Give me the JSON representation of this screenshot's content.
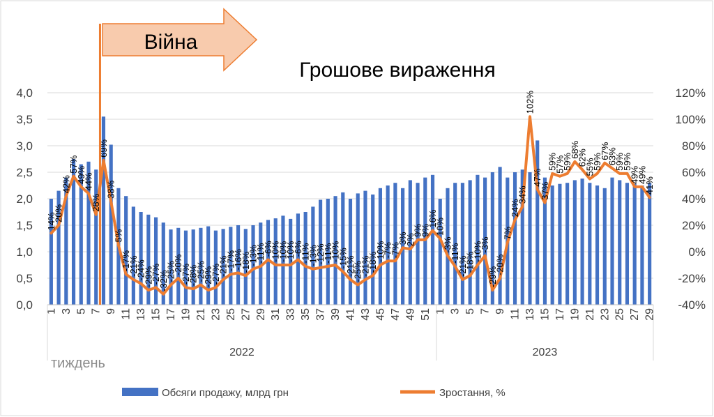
{
  "banner_label": "Війна",
  "chart_data": {
    "type": "bar+line",
    "title": "Грошове вираження",
    "xlabel": "тиждень",
    "ylim_left": [
      0,
      4
    ],
    "ylim_right": [
      -0.4,
      1.2
    ],
    "left_ticks": [
      "0,0",
      "0,5",
      "1,0",
      "1,5",
      "2,0",
      "2,5",
      "3,0",
      "3,5",
      "4,0"
    ],
    "right_ticks": [
      "-40%",
      "-20%",
      "0%",
      "20%",
      "40%",
      "60%",
      "80%",
      "100%",
      "120%"
    ],
    "grid": true,
    "legend_position": "bottom",
    "war_marker_week": "2022-8",
    "years": [
      {
        "label": "2022",
        "weeks": 52
      },
      {
        "label": "2023",
        "weeks": 29
      }
    ],
    "colors": {
      "bars": "#4472C4",
      "line": "#ED7D31",
      "banner_fill": "#F8CBAD",
      "banner_stroke": "#ED7D31"
    },
    "series": [
      {
        "name": "Обсяги продажу, млрд грн",
        "type": "bar",
        "values": [
          2.0,
          2.15,
          2.4,
          2.75,
          2.65,
          2.7,
          2.55,
          3.55,
          3.02,
          2.2,
          2.05,
          1.85,
          1.75,
          1.7,
          1.65,
          1.55,
          1.42,
          1.45,
          1.4,
          1.42,
          1.45,
          1.48,
          1.4,
          1.43,
          1.47,
          1.5,
          1.43,
          1.5,
          1.55,
          1.6,
          1.63,
          1.68,
          1.62,
          1.72,
          1.75,
          1.85,
          1.98,
          2.0,
          2.05,
          2.12,
          2.0,
          2.1,
          2.15,
          2.08,
          2.2,
          2.25,
          2.3,
          2.2,
          2.35,
          2.3,
          2.4,
          2.45,
          2.0,
          2.2,
          2.3,
          2.3,
          2.35,
          2.45,
          2.4,
          2.5,
          2.6,
          2.4,
          2.5,
          2.55,
          2.5,
          3.1,
          2.4,
          2.25,
          2.28,
          2.3,
          2.35,
          2.38,
          2.3,
          2.25,
          2.2,
          2.4,
          2.35,
          2.3,
          2.28,
          2.25,
          2.3
        ]
      },
      {
        "name": "Зростання, %",
        "type": "line",
        "values": [
          0.14,
          0.2,
          0.42,
          0.57,
          0.49,
          0.44,
          0.28,
          0.69,
          0.38,
          0.05,
          -0.17,
          -0.21,
          -0.24,
          -0.29,
          -0.27,
          -0.32,
          -0.25,
          -0.2,
          -0.27,
          -0.28,
          -0.25,
          -0.29,
          -0.27,
          -0.21,
          -0.17,
          -0.16,
          -0.18,
          -0.13,
          -0.11,
          -0.06,
          -0.1,
          -0.1,
          -0.1,
          -0.06,
          -0.11,
          -0.13,
          -0.12,
          -0.11,
          -0.1,
          -0.15,
          -0.21,
          -0.25,
          -0.21,
          -0.18,
          -0.1,
          -0.07,
          -0.07,
          0.03,
          0.02,
          0.09,
          0.09,
          0.16,
          0.1,
          -0.03,
          -0.11,
          -0.21,
          -0.18,
          -0.1,
          -0.03,
          -0.29,
          -0.2,
          0.07,
          0.24,
          0.34,
          1.02,
          0.47,
          0.37,
          0.59,
          0.57,
          0.59,
          0.68,
          0.62,
          0.55,
          0.59,
          0.67,
          0.63,
          0.59,
          0.59,
          0.49,
          0.49,
          0.41
        ]
      }
    ],
    "data_labels": [
      "14%",
      "20%",
      "42%",
      "57%",
      "49%",
      "44%",
      "28%",
      "69%",
      "38%",
      "5%",
      "-17%",
      "-21%",
      "-24%",
      "-29%",
      "-27%",
      "-32%",
      "-25%",
      "-20%",
      "-27%",
      "-28%",
      "-25%",
      "-29%",
      "-27%",
      "-21%",
      "-17%",
      "-16%",
      "-18%",
      "-13%",
      "-11%",
      "-6%",
      "-10%",
      "-10%",
      "-10%",
      "-6%",
      "-11%",
      "-13%",
      "-12%",
      "-11%",
      "-10%",
      "-15%",
      "-21%",
      "-25%",
      "-21%",
      "-18%",
      "-10%",
      "-7%",
      "-7%",
      "3%",
      "2%",
      "9%",
      "9%",
      "16%",
      "10%",
      "-3%",
      "-11%",
      "-21%",
      "-18%",
      "-10%",
      "-3%",
      "-29%",
      "-20%",
      "7%",
      "24%",
      "34%",
      "102%",
      "47%",
      "37%",
      "59%",
      "57%",
      "59%",
      "68%",
      "62%",
      "55%",
      "59%",
      "67%",
      "63%",
      "59%",
      "59%",
      "49%",
      "49%",
      "41%"
    ]
  }
}
